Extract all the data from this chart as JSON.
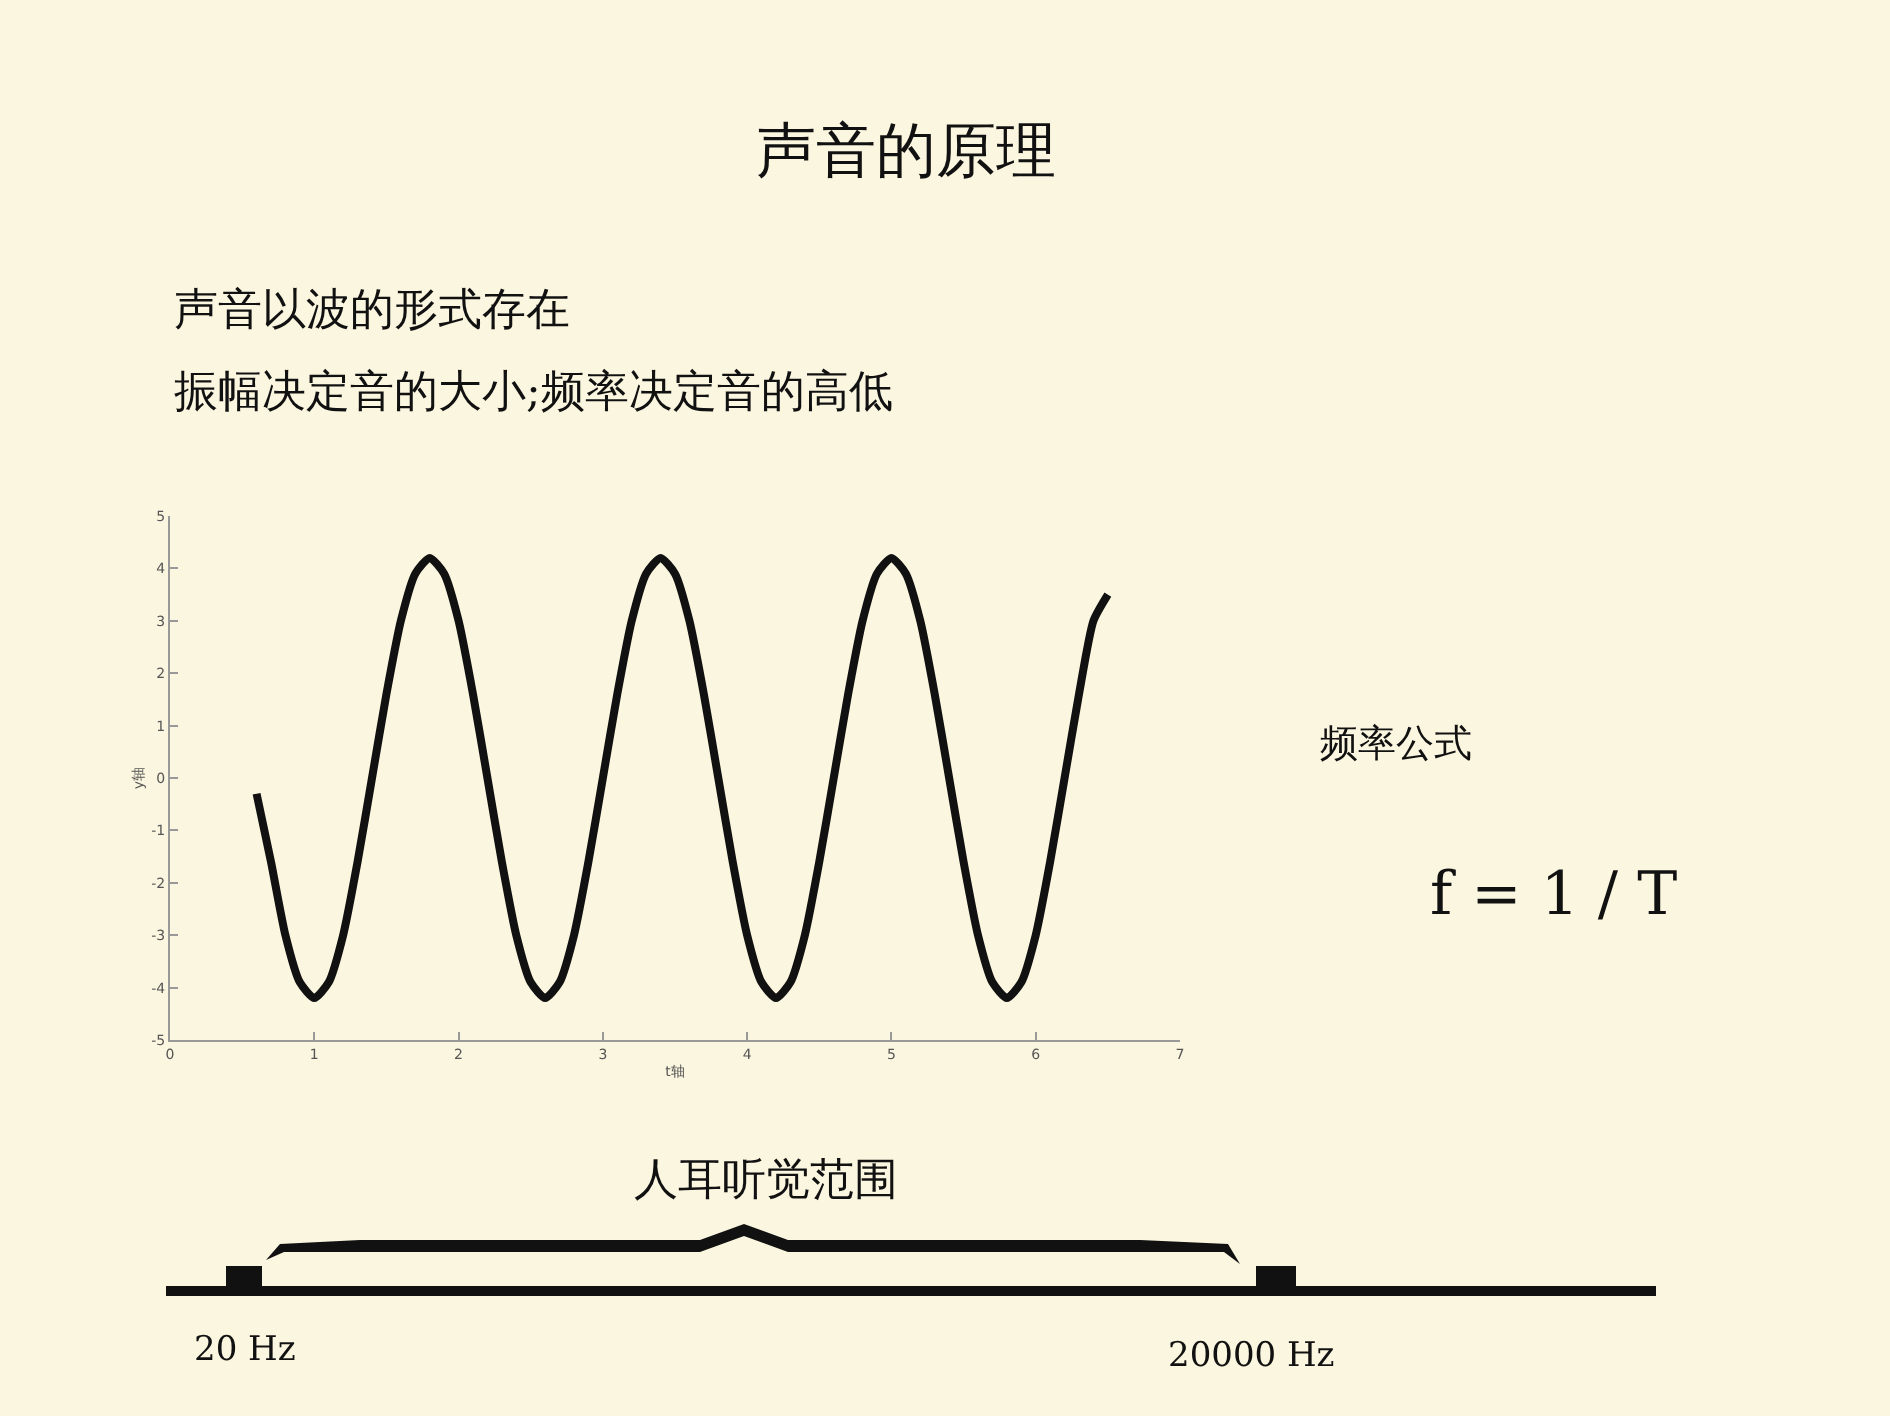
{
  "chart_data": {
    "type": "line",
    "title": "声音的原理",
    "xlabel": "t轴",
    "ylabel": "y轴",
    "x": [
      0.6,
      0.7,
      0.8,
      0.9,
      1.0,
      1.1,
      1.2,
      1.3,
      1.4,
      1.5,
      1.6,
      1.7,
      1.8,
      1.9,
      2.0,
      2.1,
      2.2,
      2.3,
      2.4,
      2.5,
      2.6,
      2.7,
      2.8,
      2.9,
      3.0,
      3.1,
      3.2,
      3.3,
      3.4,
      3.5,
      3.6,
      3.7,
      3.8,
      3.9,
      4.0,
      4.1,
      4.2,
      4.3,
      4.4,
      4.5,
      4.6,
      4.7,
      4.8,
      4.9,
      5.0,
      5.1,
      5.2,
      5.3,
      5.4,
      5.5,
      5.6,
      5.7,
      5.8,
      5.9,
      6.0,
      6.1,
      6.2,
      6.3,
      6.4,
      6.5
    ],
    "series": [
      {
        "color": "#111111",
        "values": [
          -0.3,
          -1.6,
          -3.0,
          -3.9,
          -4.2,
          -3.9,
          -3.0,
          -1.6,
          0,
          1.6,
          3.0,
          3.9,
          4.2,
          3.9,
          3.0,
          1.6,
          0,
          -1.6,
          -3.0,
          -3.9,
          -4.2,
          -3.9,
          -3.0,
          -1.6,
          0,
          1.6,
          3.0,
          3.9,
          4.2,
          3.9,
          3.0,
          1.6,
          0,
          -1.6,
          -3.0,
          -3.9,
          -4.2,
          -3.9,
          -3.0,
          -1.6,
          0,
          1.6,
          3.0,
          3.9,
          4.2,
          3.9,
          3.0,
          1.6,
          0,
          -1.6,
          -3.0,
          -3.9,
          -4.2,
          -3.9,
          -3.0,
          -1.6,
          0,
          1.6,
          3.0,
          3.5
        ]
      }
    ],
    "xlim": [
      0,
      7
    ],
    "xticks": [
      0,
      1,
      2,
      3,
      4,
      5,
      6,
      7
    ],
    "ylim": [
      -5,
      5
    ],
    "yticks": [
      -5,
      -4,
      -3,
      -2,
      -1,
      0,
      1,
      2,
      3,
      4,
      5
    ],
    "grid": false,
    "marker": "none",
    "line_style": "solid",
    "annotations": [
      "声音以波的形式存在",
      "振幅决定音的大小;频率决定音的高低",
      "频率公式",
      "f = 1 / T",
      "人耳听觉范围",
      "20 Hz",
      "20000 Hz"
    ]
  }
}
